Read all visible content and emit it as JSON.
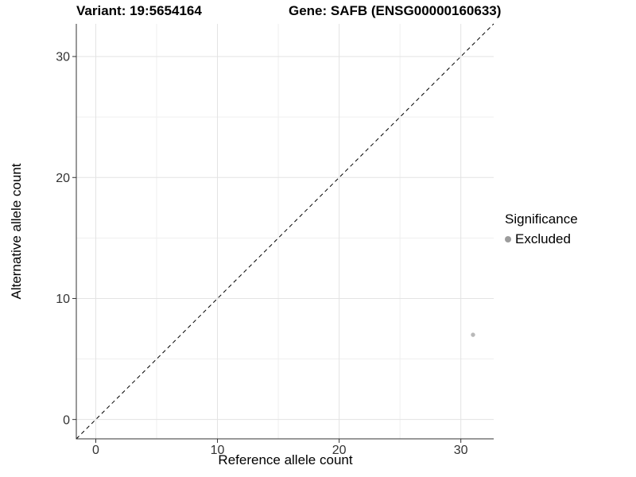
{
  "chart_data": {
    "type": "scatter",
    "title_left": "Variant: 19:5654164",
    "title_right": "Gene: SAFB (ENSG00000160633)",
    "xlabel": "Reference allele count",
    "ylabel": "Alternative allele count",
    "xlim": [
      -1.6,
      32.7
    ],
    "ylim": [
      -1.6,
      32.7
    ],
    "x_ticks": [
      0,
      10,
      20,
      30
    ],
    "y_ticks": [
      0,
      10,
      20,
      30
    ],
    "x_minor_ticks": [
      5,
      15,
      25
    ],
    "y_minor_ticks": [
      5,
      15,
      25
    ],
    "grid": true,
    "identity_line": {
      "style": "dashed",
      "color": "#000000",
      "slope": 1,
      "intercept": 0
    },
    "series": [
      {
        "name": "Excluded",
        "color": "#b9b9b9",
        "points": [
          {
            "x": 31,
            "y": 7
          }
        ]
      }
    ],
    "legend": {
      "title": "Significance",
      "position": "right",
      "items": [
        {
          "label": "Excluded",
          "color": "#9c9c9c",
          "marker": "point"
        }
      ]
    },
    "style_colors": {
      "axis_line": "#333333",
      "tick_label": "#333333",
      "grid_major": "#e3e3e3",
      "grid_minor": "#efefef",
      "background": "#ffffff"
    }
  }
}
